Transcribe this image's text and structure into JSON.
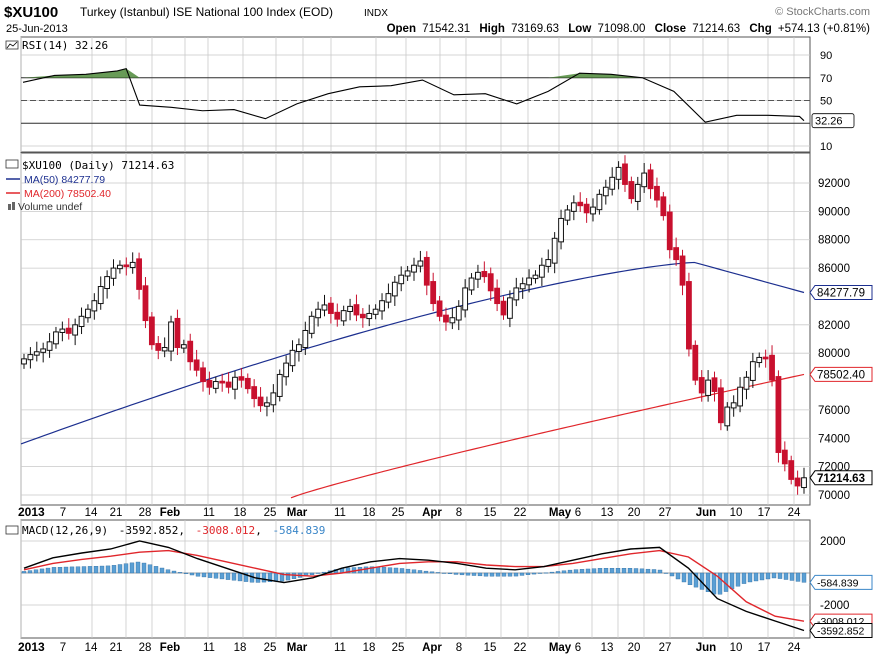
{
  "header": {
    "symbol": "$XU100",
    "description": "Turkey (Istanbul) ISE National 100 Index (EOD)",
    "exchange": "INDX",
    "watermark": "© StockCharts.com",
    "date": "25-Jun-2013",
    "open_label": "Open",
    "open": "71542.31",
    "high_label": "High",
    "high": "73169.63",
    "low_label": "Low",
    "low": "71098.00",
    "close_label": "Close",
    "close": "71214.63",
    "chg_label": "Chg",
    "chg": "+574.13 (+0.81%)"
  },
  "rsi_panel": {
    "legend": "RSI(14) 32.26",
    "current": "32.26",
    "tick_labels": [
      "90",
      "70",
      "50",
      "30",
      "10"
    ]
  },
  "price_panel": {
    "legend_title": "$XU100 (Daily) 71214.63",
    "legend_ma50": "MA(50) 84277.79",
    "legend_ma200": "MA(200) 78502.40",
    "legend_volume": "Volume undef",
    "tick_labels": [
      "92000",
      "90000",
      "88000",
      "86000",
      "82000",
      "80000",
      "76000",
      "74000",
      "72000",
      "70000"
    ],
    "ma50_tag": "84277.79",
    "ma200_tag": "78502.40",
    "close_tag": "71214.63"
  },
  "x_axis": {
    "labels": [
      "2013",
      "7",
      "14",
      "21",
      "28",
      "Feb",
      "11",
      "18",
      "25",
      "Mar",
      "11",
      "18",
      "25",
      "Apr",
      "8",
      "15",
      "22",
      "May",
      "6",
      "13",
      "20",
      "27",
      "Jun",
      "10",
      "17",
      "24"
    ]
  },
  "macd_panel": {
    "legend_name": "MACD(12,26,9)",
    "legend_macd": "-3592.852",
    "legend_signal": "-3008.012",
    "legend_hist": "-584.839",
    "tick_labels": [
      "2000",
      "-2000"
    ],
    "hist_tag": "-584.839",
    "signal_tag": "-3008.012",
    "macd_tag": "-3592.852"
  },
  "colors": {
    "up": "#111111",
    "down": "#c8102e",
    "ma50": "#1c2f8f",
    "ma200": "#e0262b",
    "rsi_fill": "#4d8a3a",
    "macd_hist": "#5a9fd4",
    "grid": "#c9c9c9",
    "border": "#555555"
  },
  "chart_data": [
    {
      "type": "line",
      "title": "RSI(14) 32.26",
      "ylim": [
        0,
        100
      ],
      "reference_lines": [
        70,
        50,
        30
      ],
      "x": [
        "2013-01-02",
        "2013-01-09",
        "2013-01-16",
        "2013-01-23",
        "2013-01-25",
        "2013-01-28",
        "2013-02-04",
        "2013-02-11",
        "2013-02-18",
        "2013-02-25",
        "2013-03-04",
        "2013-03-11",
        "2013-03-18",
        "2013-03-25",
        "2013-04-01",
        "2013-04-08",
        "2013-04-15",
        "2013-04-22",
        "2013-04-29",
        "2013-05-06",
        "2013-05-13",
        "2013-05-20",
        "2013-05-27",
        "2013-06-03",
        "2013-06-10",
        "2013-06-17",
        "2013-06-24",
        "2013-06-25"
      ],
      "values": [
        66,
        72,
        73,
        76,
        78,
        46,
        44,
        41,
        42,
        34,
        47,
        56,
        62,
        63,
        68,
        55,
        56,
        47,
        58,
        74,
        73,
        70,
        58,
        31,
        37,
        37,
        36,
        32.26
      ]
    },
    {
      "type": "candlestick",
      "title": "$XU100 (Daily) 71214.63",
      "ylim": [
        69500,
        94000
      ],
      "x_label_ticks": [
        "2013",
        "7",
        "14",
        "21",
        "28",
        "Feb",
        "11",
        "18",
        "25",
        "Mar",
        "11",
        "18",
        "25",
        "Apr",
        "8",
        "15",
        "22",
        "May",
        "6",
        "13",
        "20",
        "27",
        "Jun",
        "10",
        "17",
        "24"
      ],
      "closes": [
        79600,
        79900,
        80100,
        80300,
        80800,
        81500,
        81700,
        81400,
        82000,
        82600,
        83100,
        83700,
        84700,
        85400,
        86000,
        86200,
        86100,
        86400,
        84500,
        82300,
        80600,
        80200,
        80400,
        82200,
        80400,
        80600,
        79400,
        78800,
        78000,
        77600,
        78000,
        77900,
        77600,
        78300,
        78100,
        77500,
        76800,
        76300,
        76500,
        77200,
        78500,
        79300,
        80200,
        80600,
        81600,
        82600,
        83100,
        83400,
        82800,
        82400,
        83000,
        83300,
        82700,
        82500,
        82800,
        83100,
        83700,
        84200,
        85000,
        85500,
        85800,
        86200,
        86500,
        84800,
        83500,
        82600,
        82200,
        82500,
        83300,
        84600,
        85300,
        85700,
        85400,
        84400,
        83500,
        82700,
        83900,
        84600,
        84900,
        85300,
        85500,
        86200,
        86600,
        88100,
        89500,
        90100,
        90600,
        90400,
        89900,
        90300,
        91200,
        91700,
        92400,
        93100,
        91900,
        90900,
        91900,
        92700,
        91600,
        90800,
        89700,
        87300,
        86600,
        84800,
        80300,
        78100,
        77200,
        78100,
        77300,
        75100,
        76200,
        76500,
        77600,
        78300,
        79400,
        79700,
        79600,
        78100,
        73000,
        72200,
        71100,
        70641,
        71214.63
      ],
      "ma50": {
        "start": 73600,
        "end": 84277.79,
        "peak": 86400,
        "peak_at": "2013-06-03"
      },
      "ma200": {
        "start": 69600,
        "end": 78502.4
      }
    },
    {
      "type": "line",
      "title": "MACD(12,26,9) -3592.852, -3008.012, -584.839",
      "ylim": [
        -3800,
        2600
      ],
      "series": [
        {
          "name": "MACD",
          "values": [
            300,
            950,
            1250,
            1500,
            2000,
            1600,
            900,
            300,
            -300,
            -600,
            -300,
            300,
            700,
            900,
            800,
            600,
            300,
            200,
            400,
            800,
            1200,
            1500,
            1600,
            300,
            -1600,
            -2400,
            -3000,
            -3592.852
          ]
        },
        {
          "name": "Signal",
          "values": [
            200,
            600,
            850,
            1050,
            1300,
            1400,
            1100,
            700,
            300,
            -100,
            -200,
            0,
            300,
            600,
            700,
            700,
            500,
            400,
            400,
            600,
            900,
            1200,
            1400,
            1000,
            -200,
            -1800,
            -2700,
            -3008.012
          ]
        },
        {
          "name": "Histogram",
          "values": [
            100,
            350,
            400,
            450,
            700,
            200,
            -200,
            -400,
            -600,
            -500,
            -100,
            300,
            400,
            300,
            100,
            -100,
            -200,
            -200,
            0,
            200,
            300,
            300,
            200,
            -700,
            -1400,
            -600,
            -300,
            -584.839
          ]
        }
      ]
    }
  ]
}
